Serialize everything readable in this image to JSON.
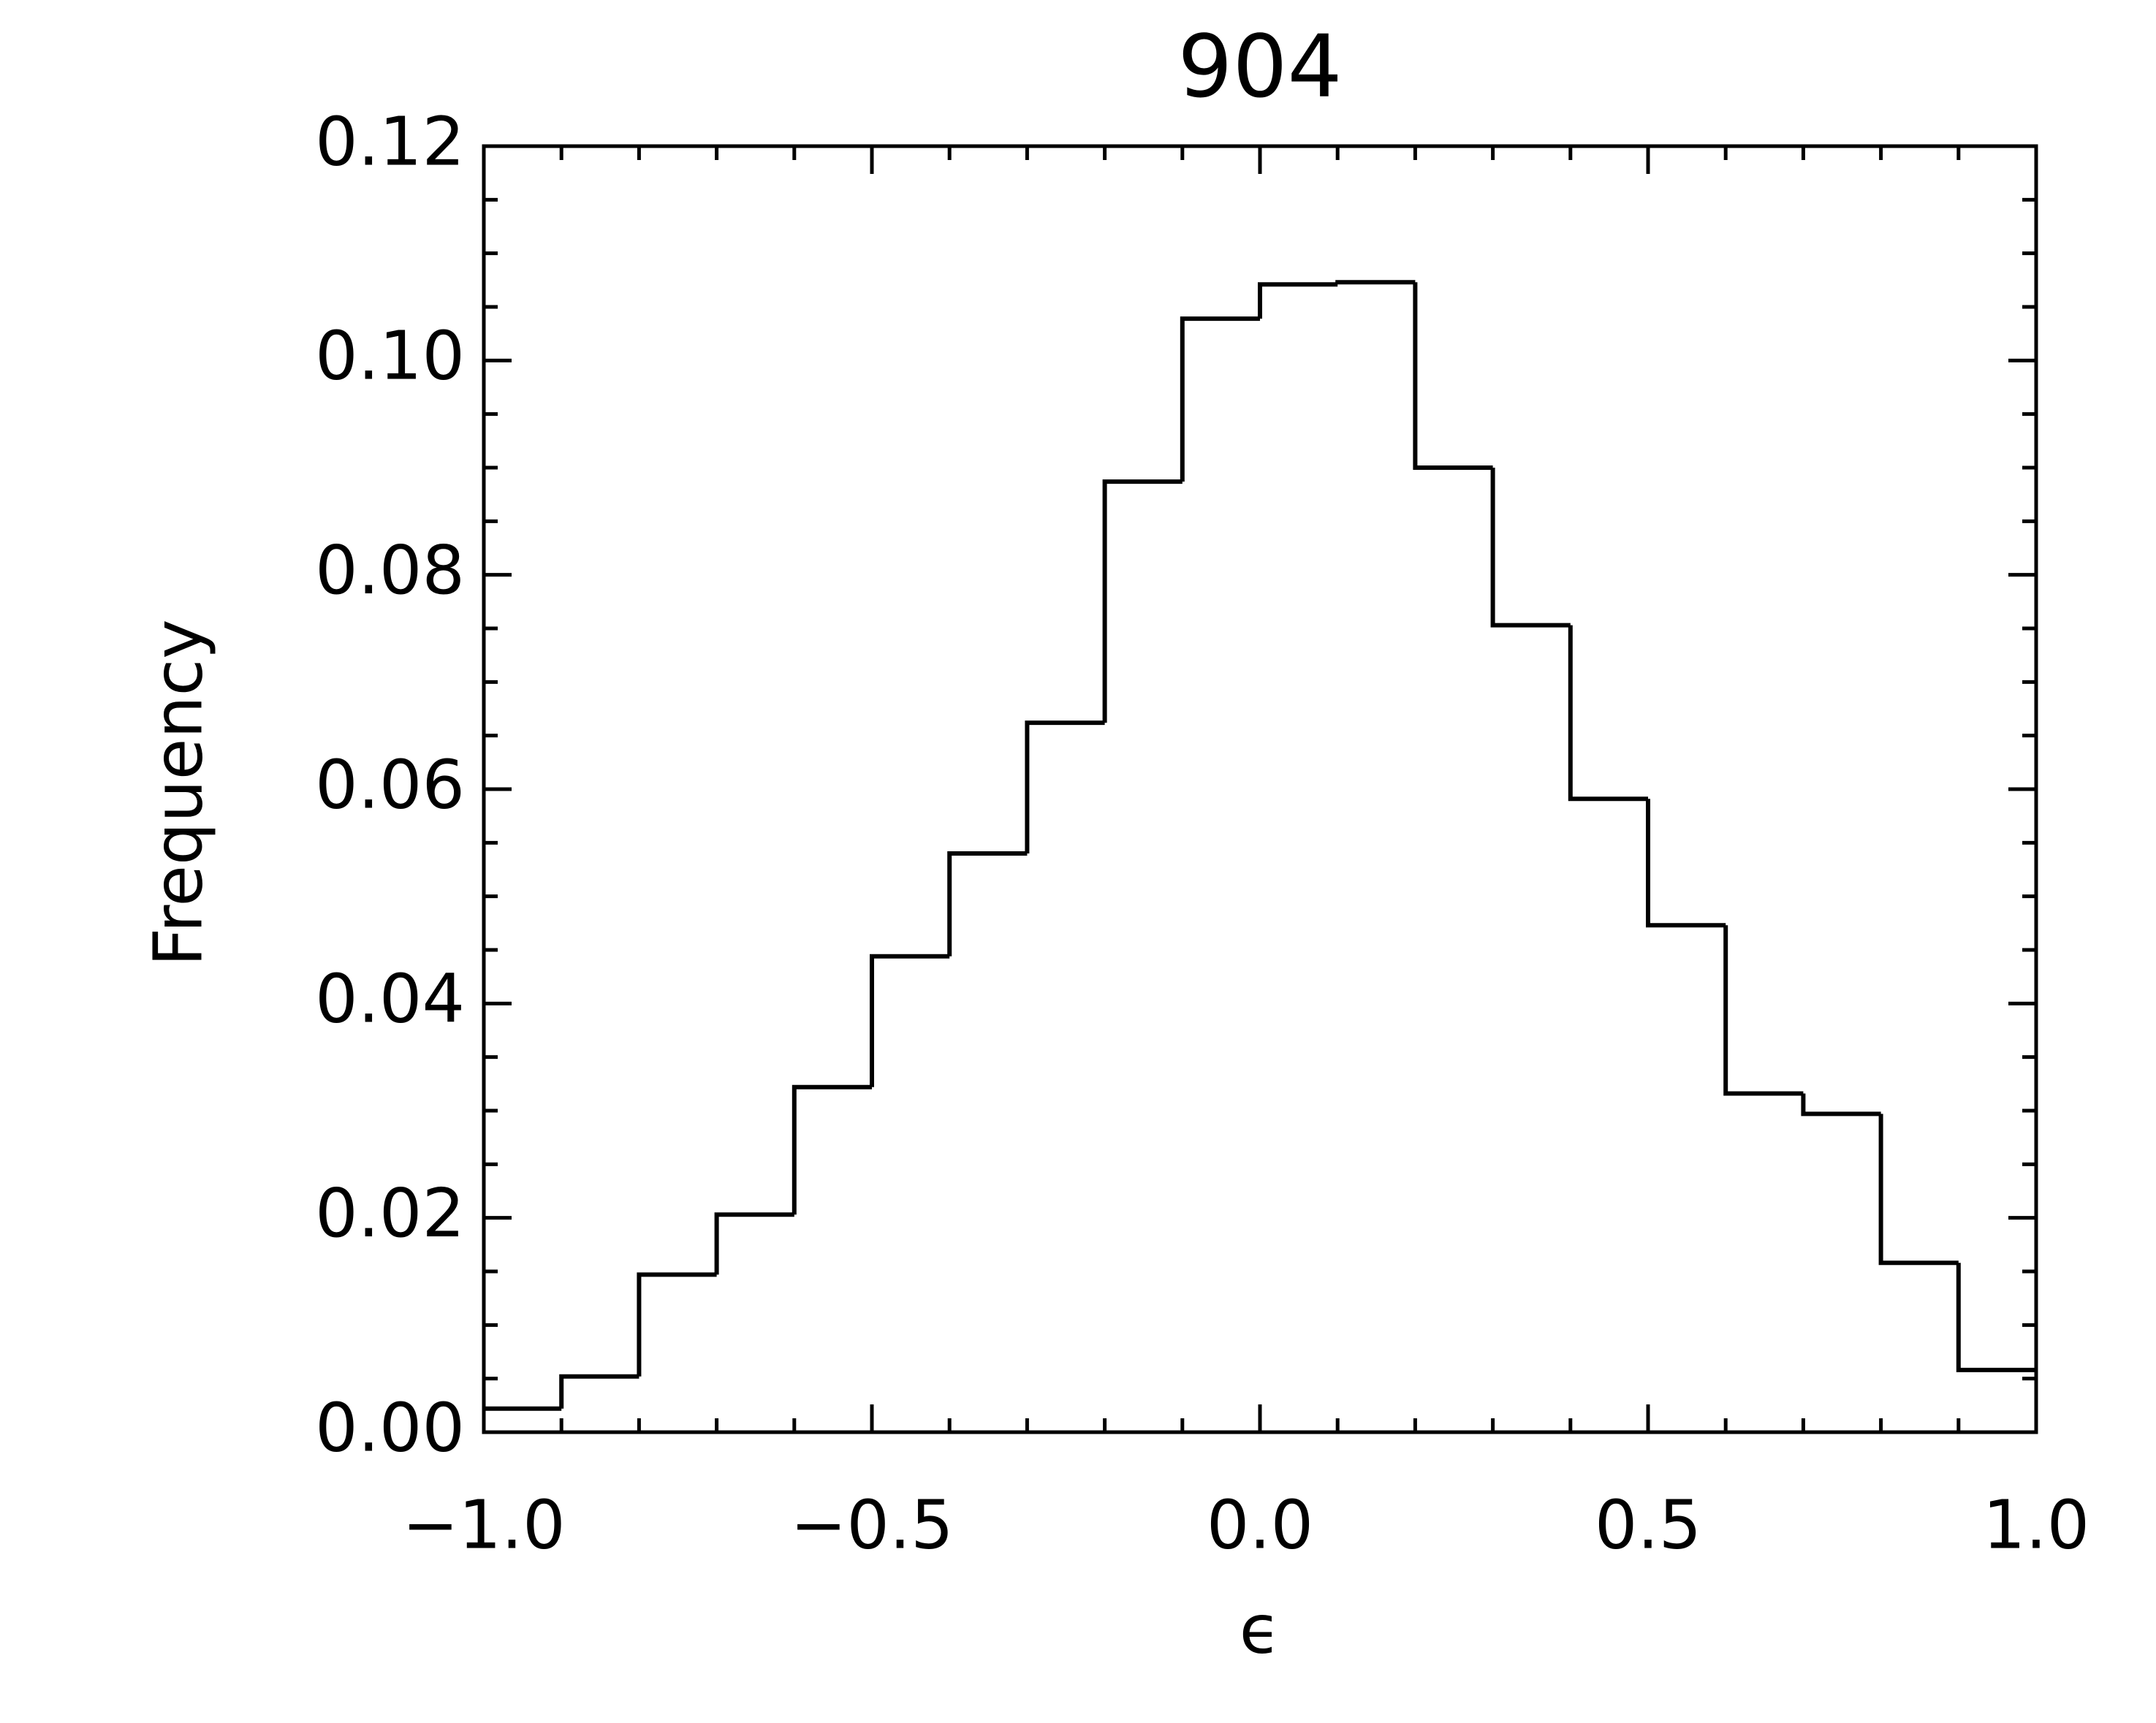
{
  "chart_data": {
    "type": "histogram",
    "title": "904",
    "xlabel": "ϵ",
    "ylabel": "Frequency",
    "bins": [
      -1.0,
      -0.9,
      -0.8,
      -0.7,
      -0.6,
      -0.5,
      -0.4,
      -0.3,
      -0.2,
      -0.1,
      0.0,
      0.1,
      0.2,
      0.3,
      0.4,
      0.5,
      0.6,
      0.7,
      0.8,
      0.9,
      1.0
    ],
    "values": [
      0.0022,
      0.0052,
      0.0147,
      0.0203,
      0.0322,
      0.0444,
      0.054,
      0.0662,
      0.0887,
      0.1039,
      0.1071,
      0.1073,
      0.09,
      0.0753,
      0.0591,
      0.0473,
      0.0316,
      0.0297,
      0.0158,
      0.0058
    ],
    "color": "#000000",
    "xlim": [
      -1.0,
      1.0
    ],
    "xticks": [
      {
        "value": -1.0,
        "label": "−1.0"
      },
      {
        "value": -0.5,
        "label": "−0.5"
      },
      {
        "value": 0.0,
        "label": "0.0"
      },
      0.5,
      {
        "value": 1.0,
        "label": "1.0"
      }
    ],
    "ylim": [
      0,
      0.12
    ],
    "yticks": [
      {
        "value": 0,
        "label": "0.00"
      },
      {
        "value": 0.02,
        "label": "0.02"
      },
      {
        "value": 0.04,
        "label": "0.04"
      },
      {
        "value": 0.06,
        "label": "0.06"
      },
      {
        "value": 0.08,
        "label": "0.08"
      },
      {
        "value": 0.1,
        "label": "0.10"
      },
      0.12
    ],
    "grid": false
  }
}
